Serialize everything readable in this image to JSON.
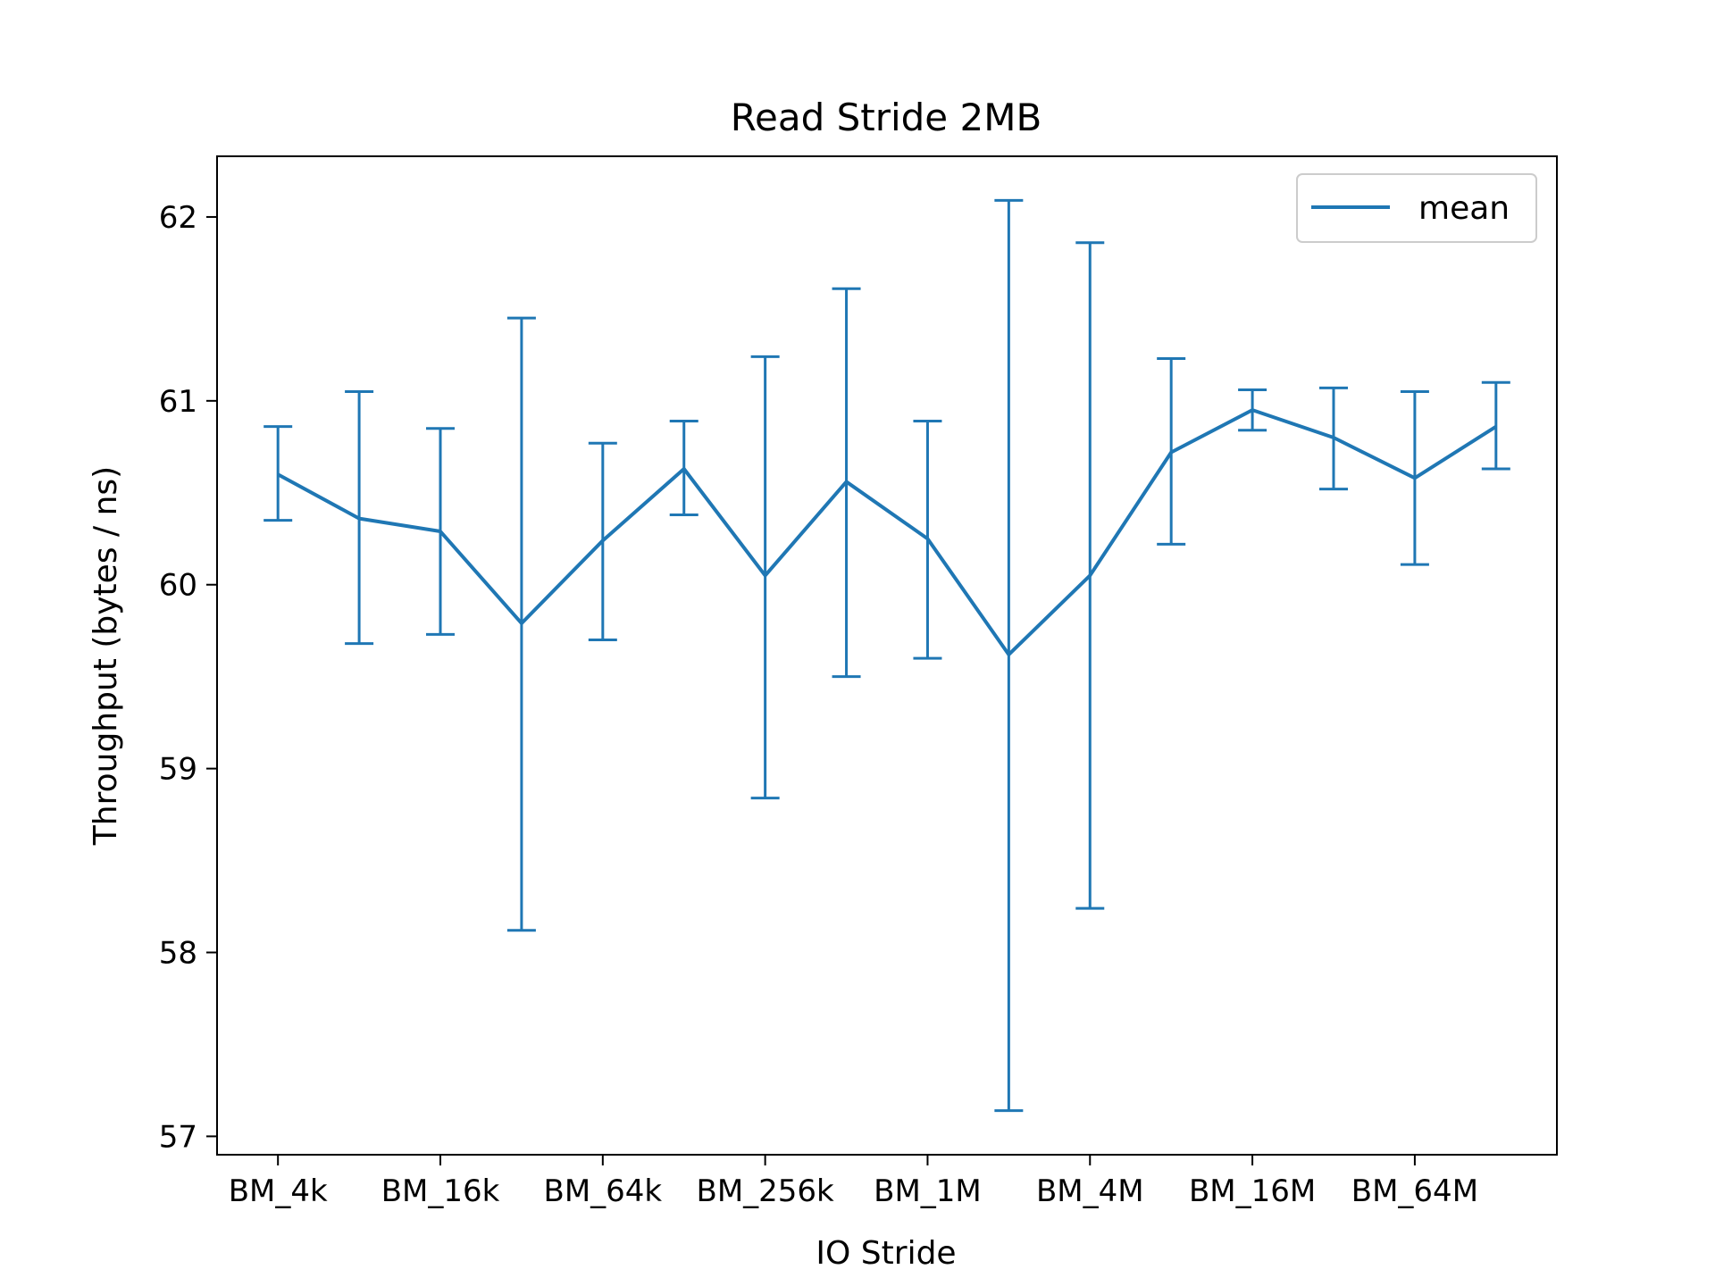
{
  "chart_data": {
    "type": "line",
    "title": "Read Stride 2MB",
    "xlabel": "IO Stride",
    "ylabel": "Throughput (bytes / ns)",
    "ylim": [
      56.9,
      62.33
    ],
    "yticks": [
      57,
      58,
      59,
      60,
      61,
      62
    ],
    "xtick_labels": [
      "BM_4k",
      "BM_16k",
      "BM_64k",
      "BM_256k",
      "BM_1M",
      "BM_4M",
      "BM_16M",
      "BM_64M"
    ],
    "xtick_positions": [
      0,
      2,
      4,
      6,
      8,
      10,
      12,
      14
    ],
    "xlim": [
      -0.75,
      15.75
    ],
    "grid": false,
    "legend_position": "upper right",
    "series": [
      {
        "name": "mean",
        "color": "#1f77b4",
        "x": [
          0,
          1,
          2,
          3,
          4,
          5,
          6,
          7,
          8,
          9,
          10,
          11,
          12,
          13,
          14,
          15
        ],
        "values": [
          60.6,
          60.36,
          60.29,
          59.79,
          60.24,
          60.63,
          60.05,
          60.56,
          60.25,
          59.62,
          60.05,
          60.72,
          60.95,
          60.8,
          60.58,
          60.86
        ],
        "error_low": [
          60.35,
          59.68,
          59.73,
          58.12,
          59.7,
          60.38,
          58.84,
          59.5,
          59.6,
          57.14,
          58.24,
          60.22,
          60.84,
          60.52,
          60.11,
          60.63
        ],
        "error_high": [
          60.86,
          61.05,
          60.85,
          61.45,
          60.77,
          60.89,
          61.24,
          61.61,
          60.89,
          62.09,
          61.86,
          61.23,
          61.06,
          61.07,
          61.05,
          61.1
        ]
      }
    ]
  }
}
